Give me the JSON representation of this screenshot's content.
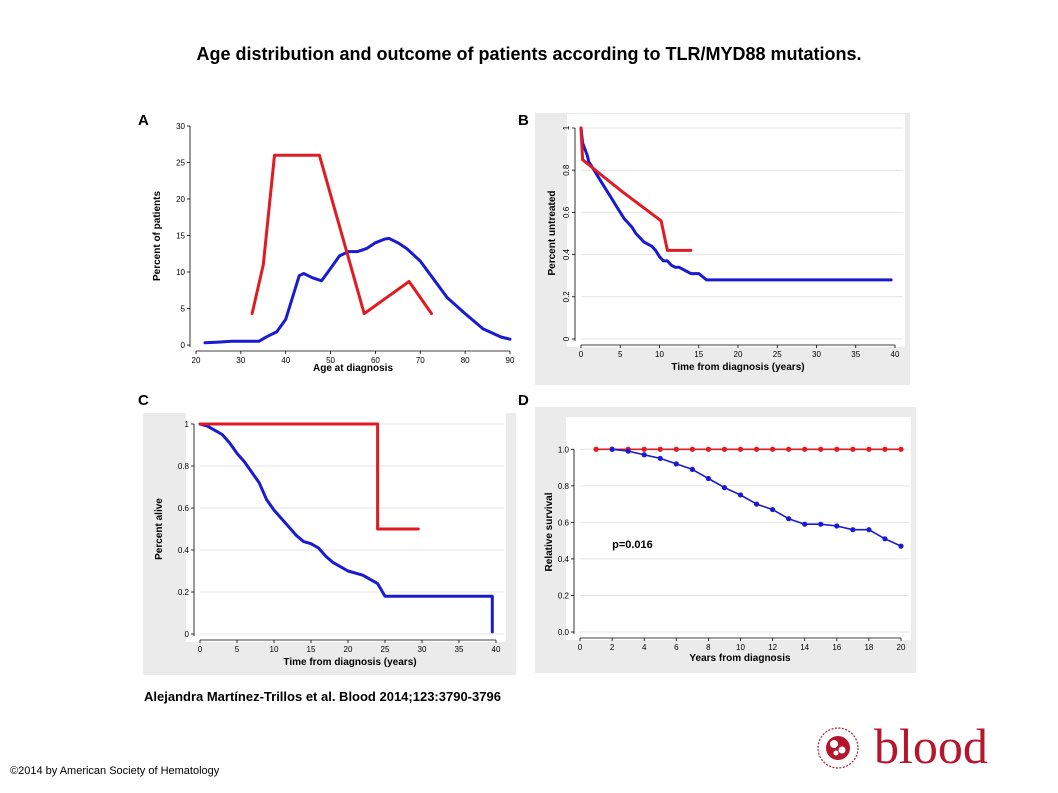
{
  "title": "Age distribution and outcome of patients according to TLR/MYD88 mutations.",
  "citation": "Alejandra Martínez-Trillos et al. Blood 2014;123:3790-3796",
  "copyright": "©2014 by American Society of Hematology",
  "logo": {
    "word": "blood",
    "seal_text": "AMERICAN SOCIETY OF HEMATOLOGY",
    "color": "#b5162b"
  },
  "colors": {
    "mutated": "#e01b22",
    "unmutated": "#1a1ad0",
    "panel_bg": "#ebebeb"
  },
  "chart_data": [
    {
      "panel": "A",
      "type": "line",
      "xlabel": "Age at diagnosis",
      "ylabel": "Percent of patients",
      "xlim": [
        20,
        90
      ],
      "ylim": [
        0,
        30
      ],
      "xticks": [
        20,
        30,
        40,
        50,
        60,
        70,
        80,
        90
      ],
      "yticks": [
        0,
        5,
        10,
        15,
        20,
        25,
        30
      ],
      "series": [
        {
          "color": "#1a1ad0",
          "x": [
            22,
            25,
            28,
            31,
            34,
            36,
            38,
            40,
            42,
            43,
            44,
            46,
            48,
            50,
            52,
            54,
            56,
            58,
            60,
            62,
            63,
            65,
            67,
            70,
            73,
            76,
            80,
            84,
            88,
            90
          ],
          "y": [
            0.3,
            0.4,
            0.5,
            0.5,
            0.5,
            1.2,
            1.8,
            3.5,
            7.5,
            9.5,
            9.8,
            9.2,
            8.8,
            10.5,
            12.2,
            12.8,
            12.8,
            13.2,
            14,
            14.5,
            14.6,
            14,
            13.2,
            11.5,
            9,
            6.5,
            4.3,
            2.2,
            1.1,
            0.8
          ]
        },
        {
          "color": "#e01b22",
          "x": [
            32.5,
            35,
            37.5,
            47.5,
            57.5,
            67.5,
            72.5
          ],
          "y": [
            4.3,
            11,
            26,
            26,
            4.3,
            8.7,
            4.3
          ]
        }
      ]
    },
    {
      "panel": "B",
      "type": "line",
      "xlabel": "Time from diagnosis (years)",
      "ylabel": "Percent untreated",
      "xlim": [
        0,
        40
      ],
      "ylim": [
        0,
        1
      ],
      "xticks": [
        0,
        5,
        10,
        15,
        20,
        25,
        30,
        35,
        40
      ],
      "yticks": [
        0,
        0.2,
        0.4,
        0.6,
        0.8,
        1
      ],
      "grid": "horizontal",
      "series": [
        {
          "color": "#1a1ad0",
          "x": [
            0,
            0.2,
            0.5,
            0.8,
            1,
            1.5,
            2,
            2.5,
            3,
            3.5,
            4,
            4.5,
            5,
            5.5,
            6,
            6.5,
            7,
            7.5,
            8,
            8.5,
            9,
            9.5,
            10,
            10.5,
            11,
            11.5,
            12,
            12.5,
            13,
            13.5,
            14,
            15,
            16,
            39.5
          ],
          "y": [
            1,
            0.93,
            0.9,
            0.87,
            0.84,
            0.81,
            0.78,
            0.75,
            0.72,
            0.69,
            0.66,
            0.63,
            0.6,
            0.57,
            0.55,
            0.53,
            0.5,
            0.48,
            0.46,
            0.45,
            0.44,
            0.42,
            0.39,
            0.37,
            0.37,
            0.35,
            0.34,
            0.34,
            0.33,
            0.32,
            0.31,
            0.31,
            0.28,
            0.28
          ]
        },
        {
          "color": "#e01b22",
          "x": [
            0,
            0.2,
            2.5,
            5.2,
            10.2,
            11,
            14
          ],
          "y": [
            1,
            0.85,
            0.78,
            0.7,
            0.56,
            0.42,
            0.42
          ]
        }
      ]
    },
    {
      "panel": "C",
      "type": "line",
      "xlabel": "Time from diagnosis (years)",
      "ylabel": "Percent alive",
      "xlim": [
        0,
        40
      ],
      "ylim": [
        0,
        1
      ],
      "xticks": [
        0,
        5,
        10,
        15,
        20,
        25,
        30,
        35,
        40
      ],
      "yticks": [
        0,
        0.2,
        0.4,
        0.6,
        0.8,
        1
      ],
      "grid": "horizontal",
      "series": [
        {
          "color": "#1a1ad0",
          "x": [
            0,
            1,
            2,
            3,
            4,
            5,
            6,
            7,
            8,
            9,
            10,
            11,
            12,
            13,
            14,
            15,
            16,
            17,
            18,
            19,
            20,
            22,
            24,
            25,
            39.5,
            39.5
          ],
          "y": [
            1,
            0.99,
            0.97,
            0.95,
            0.91,
            0.86,
            0.82,
            0.77,
            0.72,
            0.64,
            0.59,
            0.55,
            0.51,
            0.47,
            0.44,
            0.43,
            0.41,
            0.37,
            0.34,
            0.32,
            0.3,
            0.28,
            0.24,
            0.18,
            0.18,
            0.01
          ]
        },
        {
          "color": "#e01b22",
          "x": [
            0,
            24,
            24,
            29.5
          ],
          "y": [
            1,
            1,
            0.5,
            0.5
          ]
        }
      ]
    },
    {
      "panel": "D",
      "type": "line",
      "xlabel": "Years from diagnosis",
      "ylabel": "Relative survival",
      "xlim": [
        0,
        20
      ],
      "ylim": [
        0,
        1.1
      ],
      "xticks": [
        0,
        2,
        4,
        6,
        8,
        10,
        12,
        14,
        16,
        18,
        20
      ],
      "yticks": [
        0,
        0.2,
        0.4,
        0.6,
        0.8,
        1
      ],
      "ytick_labels": [
        "0.0",
        "0.2",
        "0.4",
        "0.6",
        "0.8",
        "1.0"
      ],
      "grid": "horizontal",
      "annotation": "p=0.016",
      "series": [
        {
          "color": "#e01b22",
          "markers": true,
          "x": [
            1,
            2,
            3,
            4,
            5,
            6,
            7,
            8,
            9,
            10,
            11,
            12,
            13,
            14,
            15,
            16,
            17,
            18,
            19,
            20
          ],
          "y": [
            1,
            1,
            1,
            1,
            1,
            1,
            1,
            1,
            1,
            1,
            1,
            1,
            1,
            1,
            1,
            1,
            1,
            1,
            1,
            1
          ]
        },
        {
          "color": "#1a1ad0",
          "markers": true,
          "x": [
            2,
            3,
            4,
            5,
            6,
            7,
            8,
            9,
            10,
            11,
            12,
            13,
            14,
            15,
            16,
            17,
            18,
            19,
            20
          ],
          "y": [
            1,
            0.99,
            0.97,
            0.95,
            0.92,
            0.89,
            0.84,
            0.79,
            0.75,
            0.7,
            0.67,
            0.62,
            0.59,
            0.59,
            0.58,
            0.56,
            0.56,
            0.51,
            0.47
          ]
        }
      ]
    }
  ]
}
